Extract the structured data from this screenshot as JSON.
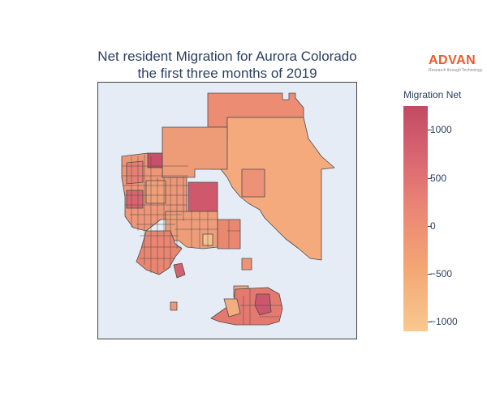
{
  "header": {
    "title_line1": "Net resident Migration for Aurora Colorado",
    "title_line2": "the first three months of 2019"
  },
  "logo": {
    "name": "ADVAN",
    "tagline": "Research through Technology",
    "color": "#ec5a2a"
  },
  "map": {
    "type": "choropleth",
    "region": "Aurora Colorado",
    "background_color": "#e5ecf6",
    "border_color": "#444444"
  },
  "colorbar": {
    "title": "Migration Net",
    "ticks": [
      "1000",
      "500",
      "0",
      "−500",
      "−1000"
    ],
    "tick_values": [
      1000,
      500,
      0,
      -500,
      -1000
    ],
    "range": [
      -1150,
      1250
    ],
    "colors": [
      "#f8c98e",
      "#f3a473",
      "#ea8575",
      "#d96570",
      "#c14a63"
    ]
  }
}
